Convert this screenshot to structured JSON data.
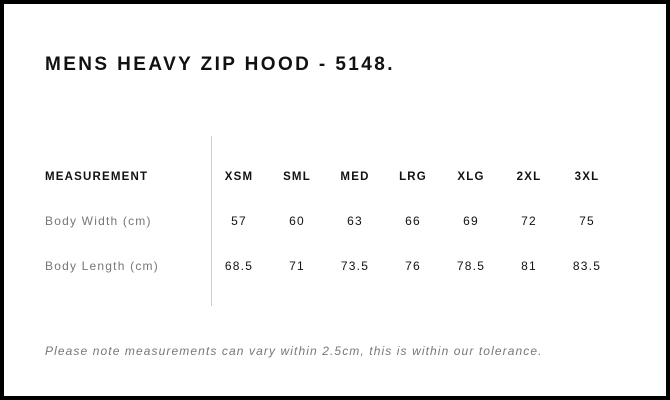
{
  "title": "MENS HEAVY ZIP HOOD - 5148.",
  "table": {
    "header_label": "MEASUREMENT",
    "sizes": [
      "XSM",
      "SML",
      "MED",
      "LRG",
      "XLG",
      "2XL",
      "3XL"
    ],
    "rows": [
      {
        "label": "Body Width (cm)",
        "values": [
          "57",
          "60",
          "63",
          "66",
          "69",
          "72",
          "75"
        ]
      },
      {
        "label": "Body Length (cm)",
        "values": [
          "68.5",
          "71",
          "73.5",
          "76",
          "78.5",
          "81",
          "83.5"
        ]
      }
    ]
  },
  "note": "Please note measurements can vary within 2.5cm, this is within our tolerance."
}
